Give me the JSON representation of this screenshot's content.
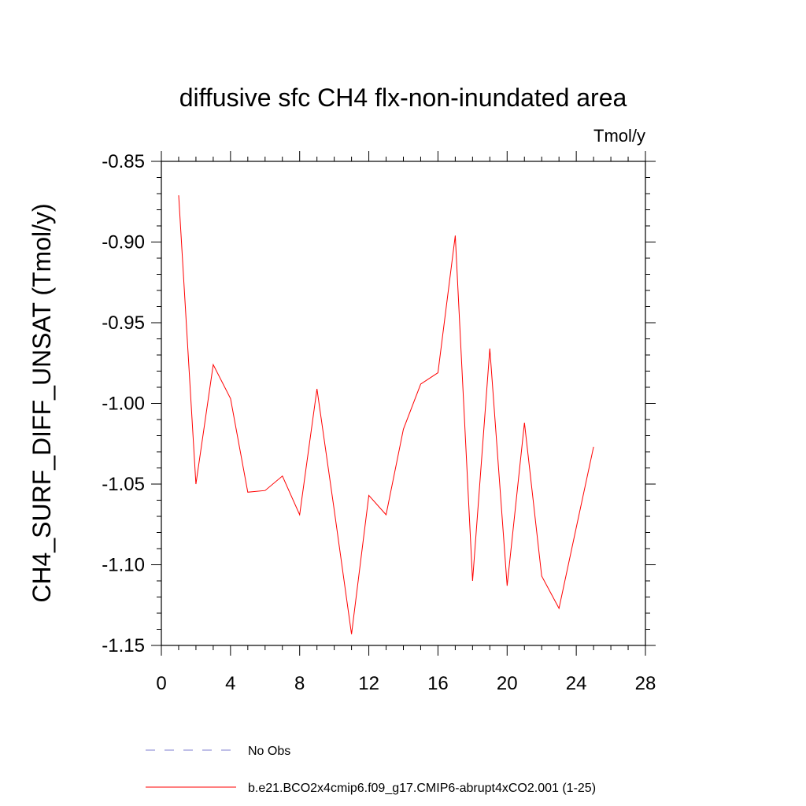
{
  "chart_data": {
    "type": "line",
    "title": "diffusive sfc CH4 flx-non-inundated area",
    "units": "Tmol/y",
    "xlabel": "",
    "ylabel": "CH4_SURF_DIFF_UNSAT  (Tmol/y)",
    "xlim": [
      0,
      28
    ],
    "ylim": [
      -1.15,
      -0.85
    ],
    "x_ticks": [
      0,
      4,
      8,
      12,
      16,
      20,
      24,
      28
    ],
    "x_tick_labels": [
      "0",
      "4",
      "8",
      "12",
      "16",
      "20",
      "24",
      "28"
    ],
    "y_ticks": [
      -0.85,
      -0.9,
      -0.95,
      -1.0,
      -1.05,
      -1.1,
      -1.15
    ],
    "y_tick_labels": [
      "-0.85",
      "-0.90",
      "-0.95",
      "-1.00",
      "-1.05",
      "-1.10",
      "-1.15"
    ],
    "series": [
      {
        "name": "b.e21.BCO2x4cmip6.f09_g17.CMIP6-abrupt4xCO2.001 (1-25)",
        "color": "#ff0000",
        "x": [
          1,
          2,
          3,
          4,
          5,
          6,
          7,
          8,
          9,
          10,
          11,
          12,
          13,
          14,
          15,
          16,
          17,
          18,
          19,
          20,
          21,
          22,
          23,
          24,
          25
        ],
        "values": [
          -0.871,
          -1.05,
          -0.976,
          -0.997,
          -1.055,
          -1.054,
          -1.045,
          -1.069,
          -0.991,
          -1.066,
          -1.143,
          -1.057,
          -1.069,
          -1.016,
          -0.988,
          -0.981,
          -0.896,
          -1.11,
          -0.966,
          -1.113,
          -1.012,
          -1.107,
          -1.127,
          -1.077,
          -1.027
        ]
      }
    ],
    "legend": [
      {
        "label": "No Obs",
        "color": "#7f7fd0",
        "style": "dashed"
      },
      {
        "label": "b.e21.BCO2x4cmip6.f09_g17.CMIP6-abrupt4xCO2.001 (1-25)",
        "color": "#ff0000",
        "style": "solid"
      }
    ],
    "legend_position": "bottom-left"
  }
}
